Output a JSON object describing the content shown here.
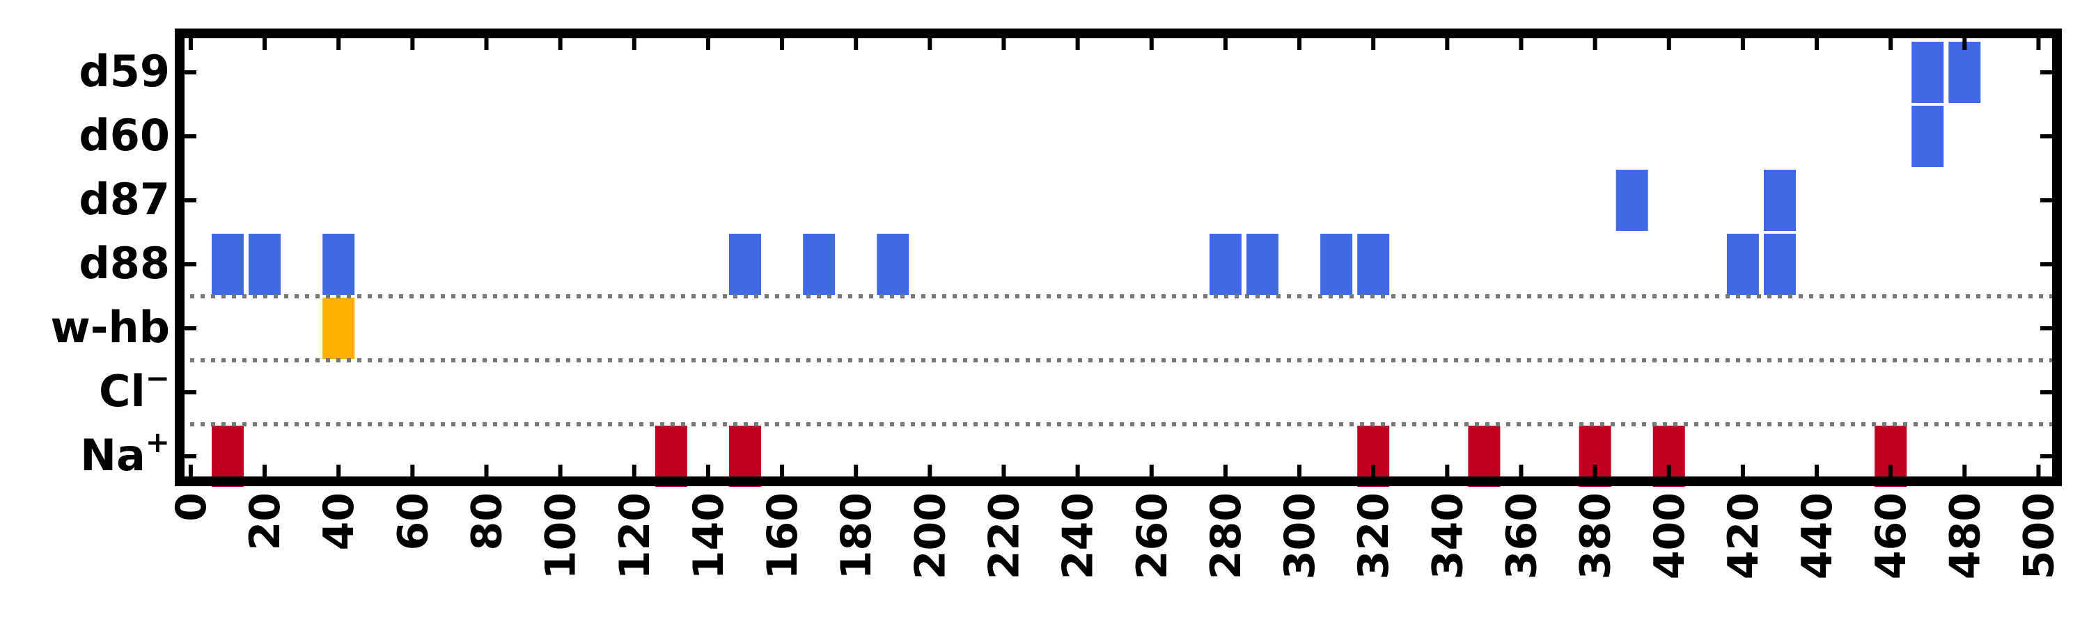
{
  "chart_data": {
    "type": "heatmap",
    "title": "",
    "xlabel": "",
    "ylabel": "",
    "xlim": [
      -3,
      505
    ],
    "x_ticks": [
      0,
      20,
      40,
      60,
      80,
      100,
      120,
      140,
      160,
      180,
      200,
      220,
      240,
      260,
      280,
      300,
      320,
      340,
      360,
      380,
      400,
      420,
      440,
      460,
      480,
      500
    ],
    "x_tick_labels": [
      "0",
      "20",
      "40",
      "60",
      "80",
      "100",
      "120",
      "140",
      "160",
      "180",
      "200",
      "220",
      "240",
      "260",
      "280",
      "300",
      "320",
      "340",
      "360",
      "380",
      "400",
      "420",
      "440",
      "460",
      "480",
      "500"
    ],
    "rows": [
      {
        "label": "d59",
        "sup": "",
        "color": "#4169e1",
        "x": [
          470,
          480
        ]
      },
      {
        "label": "d60",
        "sup": "",
        "color": "#4169e1",
        "x": [
          470
        ]
      },
      {
        "label": "d87",
        "sup": "",
        "color": "#4169e1",
        "x": [
          390,
          430
        ]
      },
      {
        "label": "d88",
        "sup": "",
        "color": "#4169e1",
        "x": [
          10,
          20,
          40,
          150,
          170,
          190,
          280,
          290,
          310,
          320,
          420,
          430
        ]
      },
      {
        "label": "w-hb",
        "sup": "",
        "color": "#ffb000",
        "x": [
          40
        ]
      },
      {
        "label": "Cl",
        "sup": "−",
        "color": "#c00020",
        "x": []
      },
      {
        "label": "Na",
        "sup": "+",
        "color": "#c00020",
        "x": [
          10,
          130,
          150,
          320,
          350,
          380,
          400,
          460
        ]
      }
    ],
    "separators_after_rows": [
      "d88",
      "w-hb",
      "Cl"
    ],
    "separator_style": "dotted",
    "grid": false,
    "legend": "none",
    "colors": {
      "blue": "#4169e1",
      "orange": "#ffb000",
      "red": "#c00020",
      "separator": "#777777",
      "frame": "#000000"
    }
  }
}
